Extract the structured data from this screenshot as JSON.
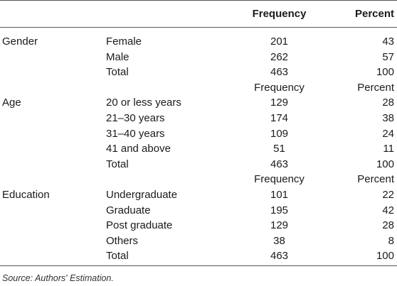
{
  "table": {
    "header": {
      "blank1": "",
      "blank2": "",
      "frequency": "Frequency",
      "percent": "Percent"
    },
    "rows": [
      {
        "category": "Gender",
        "item": "Female",
        "frequency": "201",
        "percent": "43"
      },
      {
        "category": "",
        "item": "Male",
        "frequency": "262",
        "percent": "57"
      },
      {
        "category": "",
        "item": "Total",
        "frequency": "463",
        "percent": "100"
      },
      {
        "category": "",
        "item": "",
        "frequency": "Frequency",
        "percent": "Percent"
      },
      {
        "category": "Age",
        "item": "20 or less years",
        "frequency": "129",
        "percent": "28"
      },
      {
        "category": "",
        "item": "21–30 years",
        "frequency": "174",
        "percent": "38"
      },
      {
        "category": "",
        "item": "31–40 years",
        "frequency": "109",
        "percent": "24"
      },
      {
        "category": "",
        "item": "41 and above",
        "frequency": "51",
        "percent": "11"
      },
      {
        "category": "",
        "item": "Total",
        "frequency": "463",
        "percent": "100"
      },
      {
        "category": "",
        "item": "",
        "frequency": "Frequency",
        "percent": "Percent"
      },
      {
        "category": "Education",
        "item": "Undergraduate",
        "frequency": "101",
        "percent": "22"
      },
      {
        "category": "",
        "item": "Graduate",
        "frequency": "195",
        "percent": "42"
      },
      {
        "category": "",
        "item": "Post graduate",
        "frequency": "129",
        "percent": "28"
      },
      {
        "category": "",
        "item": "Others",
        "frequency": "38",
        "percent": "8"
      },
      {
        "category": "",
        "item": "Total",
        "frequency": "463",
        "percent": "100"
      }
    ]
  },
  "source": "Source: Authors' Estimation."
}
